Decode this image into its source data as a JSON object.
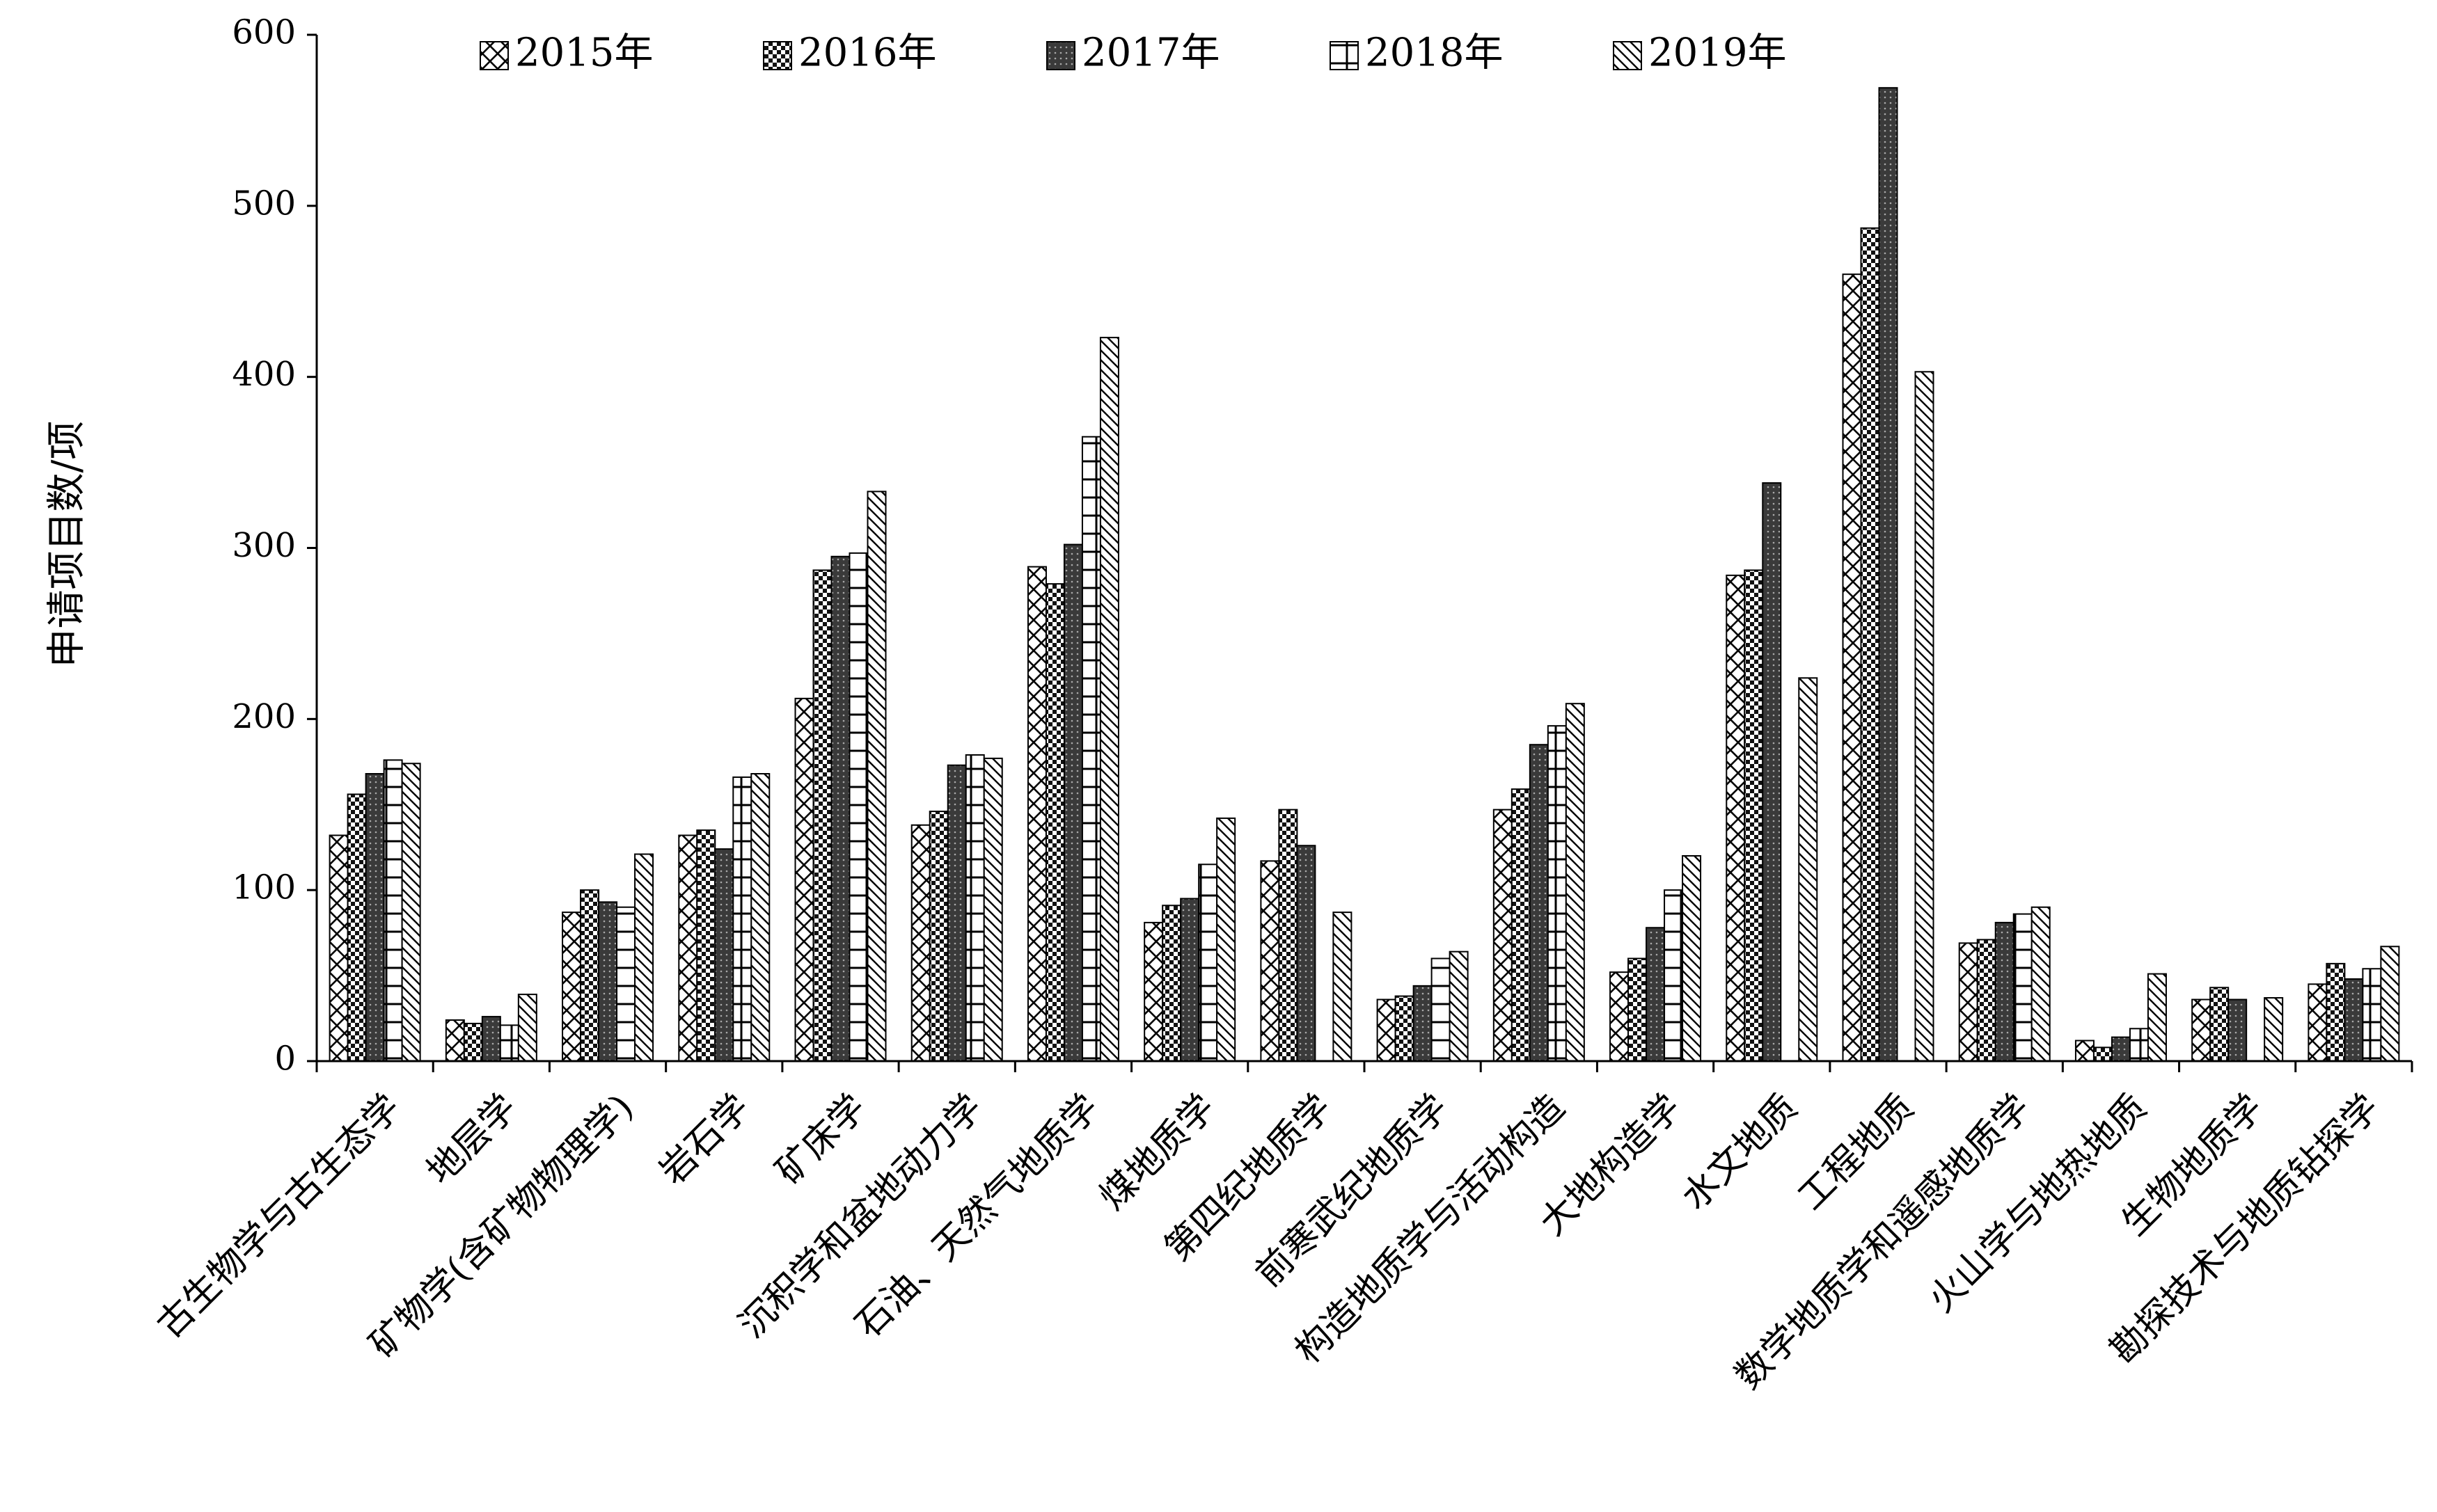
{
  "chart_data": {
    "type": "bar",
    "title": "",
    "xlabel": "",
    "ylabel": "申请项目数/项",
    "ylim": [
      0,
      600
    ],
    "yticks": [
      0,
      100,
      200,
      300,
      400,
      500,
      600
    ],
    "grid": false,
    "legend_position": "top",
    "categories": [
      "古生物学与古生态学",
      "地层学",
      "矿物学(含矿物物理学)",
      "岩石学",
      "矿床学",
      "沉积学和盆地动力学",
      "石油、天然气地质学",
      "煤地质学",
      "第四纪地质学",
      "前寒武纪地质学",
      "构造地质学与活动构造",
      "大地构造学",
      "水文地质",
      "工程地质",
      "数学地质学和遥感地质学",
      "火山学与地热地质",
      "生物地质学",
      "勘探技术与地质钻探学"
    ],
    "series": [
      {
        "name": "2015年",
        "pattern": "diamond-cross",
        "values": [
          132,
          24,
          87,
          132,
          212,
          138,
          289,
          81,
          117,
          36,
          147,
          52,
          284,
          460,
          69,
          12,
          36,
          45
        ]
      },
      {
        "name": "2016年",
        "pattern": "dense-check",
        "values": [
          156,
          22,
          100,
          135,
          287,
          146,
          279,
          91,
          147,
          38,
          159,
          60,
          287,
          487,
          71,
          8,
          43,
          57
        ]
      },
      {
        "name": "2017年",
        "pattern": "dark-dots",
        "values": [
          168,
          26,
          93,
          124,
          295,
          173,
          302,
          95,
          126,
          44,
          185,
          78,
          338,
          569,
          81,
          14,
          36,
          48
        ]
      },
      {
        "name": "2018年",
        "pattern": "grid",
        "values": [
          176,
          21,
          90,
          166,
          297,
          179,
          365,
          115,
          0,
          60,
          196,
          100,
          0,
          0,
          86,
          19,
          0,
          54
        ]
      },
      {
        "name": "2019年",
        "pattern": "diagonal",
        "values": [
          174,
          39,
          121,
          168,
          333,
          177,
          423,
          142,
          87,
          64,
          209,
          120,
          224,
          403,
          90,
          51,
          37,
          67
        ]
      }
    ]
  }
}
